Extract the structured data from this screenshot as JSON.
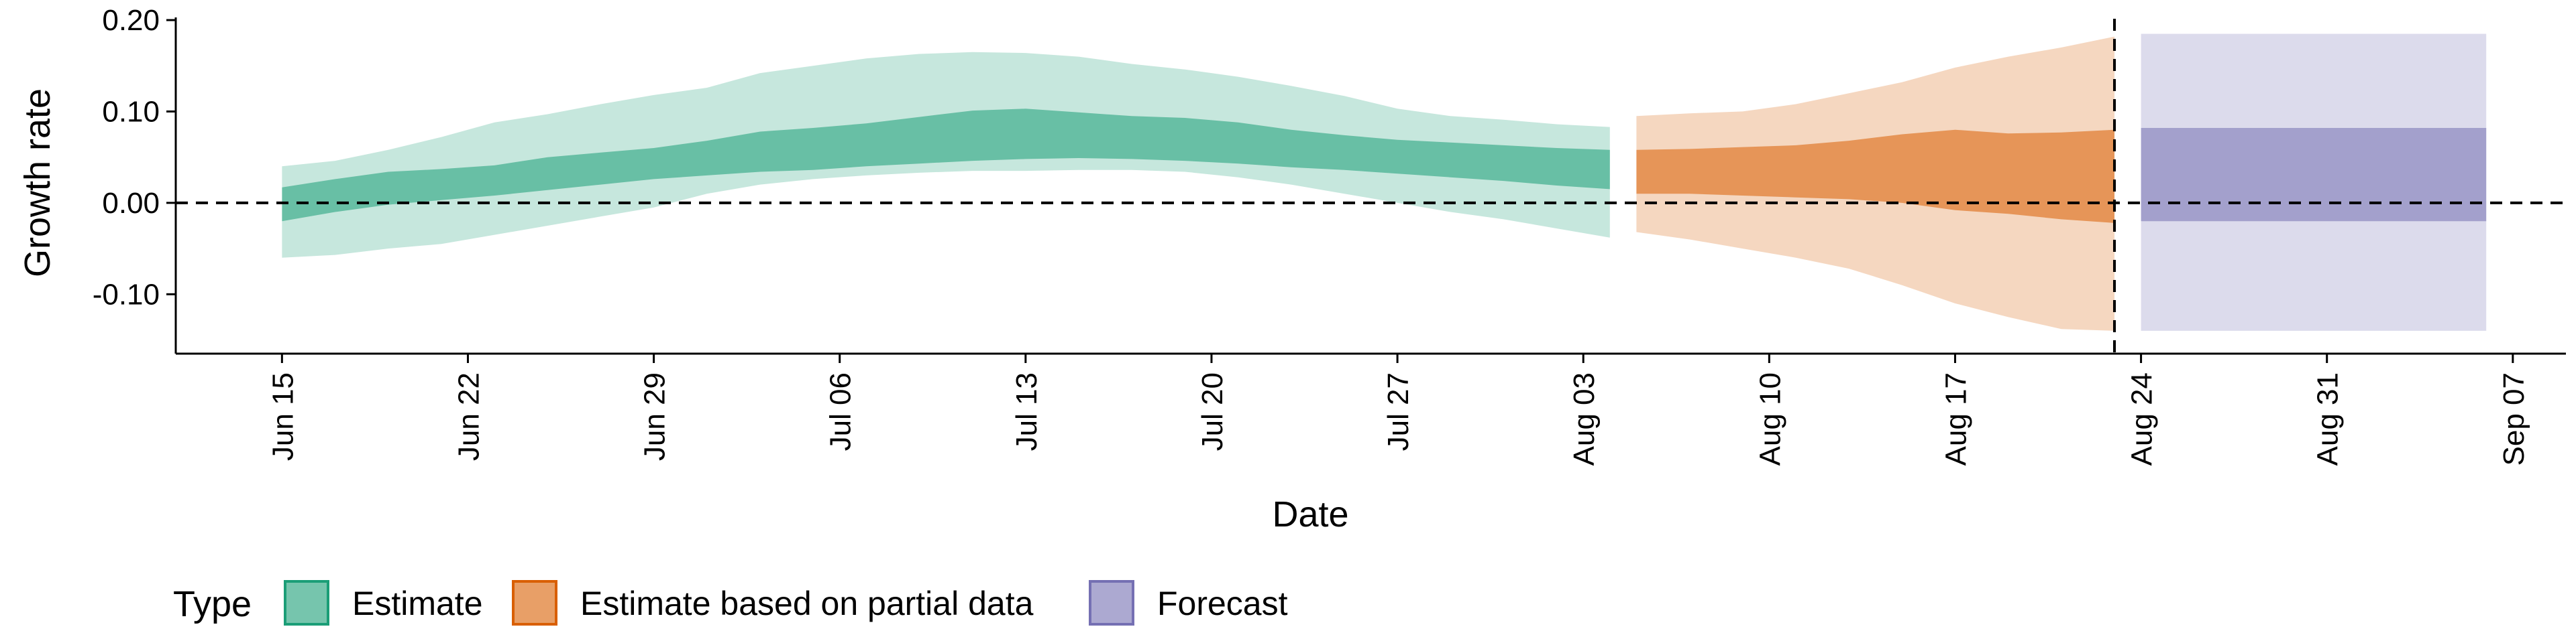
{
  "chart_data": {
    "type": "area",
    "xlabel": "Date",
    "ylabel": "Growth rate",
    "ylim": [
      -0.165,
      0.2
    ],
    "xlim": [
      "2020-06-11",
      "2020-09-09"
    ],
    "yticks": [
      {
        "value": -0.1,
        "label": "-0.10"
      },
      {
        "value": 0.0,
        "label": "0.00"
      },
      {
        "value": 0.1,
        "label": "0.10"
      },
      {
        "value": 0.2,
        "label": "0.20"
      }
    ],
    "xticks": [
      {
        "date": "2020-06-15",
        "label": "Jun 15"
      },
      {
        "date": "2020-06-22",
        "label": "Jun 22"
      },
      {
        "date": "2020-06-29",
        "label": "Jun 29"
      },
      {
        "date": "2020-07-06",
        "label": "Jul 06"
      },
      {
        "date": "2020-07-13",
        "label": "Jul 13"
      },
      {
        "date": "2020-07-20",
        "label": "Jul 20"
      },
      {
        "date": "2020-07-27",
        "label": "Jul 27"
      },
      {
        "date": "2020-08-03",
        "label": "Aug 03"
      },
      {
        "date": "2020-08-10",
        "label": "Aug 10"
      },
      {
        "date": "2020-08-17",
        "label": "Aug 17"
      },
      {
        "date": "2020-08-24",
        "label": "Aug 24"
      },
      {
        "date": "2020-08-31",
        "label": "Aug 31"
      },
      {
        "date": "2020-09-07",
        "label": "Sep 07"
      }
    ],
    "reference_lines": [
      {
        "axis": "y",
        "value": 0.0,
        "style": "dashed"
      },
      {
        "axis": "x",
        "value": "2020-08-23",
        "style": "dashed"
      }
    ],
    "grid": false,
    "legend": {
      "title": "Type",
      "position": "bottom-left"
    },
    "series": [
      {
        "name": "Estimate",
        "color": "#1b9e77",
        "x": [
          "2020-06-15",
          "2020-06-17",
          "2020-06-19",
          "2020-06-21",
          "2020-06-23",
          "2020-06-25",
          "2020-06-27",
          "2020-06-29",
          "2020-07-01",
          "2020-07-03",
          "2020-07-05",
          "2020-07-07",
          "2020-07-09",
          "2020-07-11",
          "2020-07-13",
          "2020-07-15",
          "2020-07-17",
          "2020-07-19",
          "2020-07-21",
          "2020-07-23",
          "2020-07-25",
          "2020-07-27",
          "2020-07-29",
          "2020-07-31",
          "2020-08-02",
          "2020-08-04"
        ],
        "upper90": [
          0.04,
          0.046,
          0.058,
          0.072,
          0.088,
          0.097,
          0.108,
          0.118,
          0.126,
          0.142,
          0.15,
          0.158,
          0.163,
          0.165,
          0.164,
          0.16,
          0.152,
          0.146,
          0.138,
          0.128,
          0.117,
          0.103,
          0.095,
          0.091,
          0.086,
          0.083
        ],
        "upper50": [
          0.017,
          0.026,
          0.034,
          0.037,
          0.041,
          0.05,
          0.055,
          0.06,
          0.068,
          0.078,
          0.082,
          0.087,
          0.094,
          0.101,
          0.103,
          0.099,
          0.095,
          0.093,
          0.088,
          0.08,
          0.074,
          0.069,
          0.066,
          0.063,
          0.06,
          0.058
        ],
        "lower50": [
          -0.02,
          -0.01,
          -0.002,
          0.003,
          0.008,
          0.014,
          0.02,
          0.026,
          0.03,
          0.034,
          0.036,
          0.04,
          0.043,
          0.046,
          0.048,
          0.049,
          0.048,
          0.046,
          0.043,
          0.039,
          0.036,
          0.032,
          0.028,
          0.024,
          0.019,
          0.015
        ],
        "lower90": [
          -0.06,
          -0.057,
          -0.05,
          -0.045,
          -0.035,
          -0.025,
          -0.015,
          -0.005,
          0.01,
          0.02,
          0.026,
          0.03,
          0.033,
          0.035,
          0.035,
          0.036,
          0.036,
          0.034,
          0.028,
          0.02,
          0.01,
          0.0,
          -0.01,
          -0.018,
          -0.028,
          -0.038
        ]
      },
      {
        "name": "Estimate based on partial data",
        "color": "#d95f02",
        "x": [
          "2020-08-05",
          "2020-08-07",
          "2020-08-09",
          "2020-08-11",
          "2020-08-13",
          "2020-08-15",
          "2020-08-17",
          "2020-08-19",
          "2020-08-21",
          "2020-08-23"
        ],
        "upper90": [
          0.095,
          0.098,
          0.1,
          0.108,
          0.12,
          0.132,
          0.148,
          0.16,
          0.17,
          0.182
        ],
        "upper50": [
          0.058,
          0.059,
          0.061,
          0.063,
          0.068,
          0.075,
          0.08,
          0.076,
          0.077,
          0.08
        ],
        "lower50": [
          0.01,
          0.01,
          0.008,
          0.006,
          0.004,
          0.0,
          -0.008,
          -0.012,
          -0.018,
          -0.022
        ],
        "lower90": [
          -0.032,
          -0.04,
          -0.05,
          -0.06,
          -0.072,
          -0.09,
          -0.11,
          -0.125,
          -0.138,
          -0.14
        ]
      },
      {
        "name": "Forecast",
        "color": "#7570b3",
        "x": [
          "2020-08-24",
          "2020-09-06"
        ],
        "upper90": [
          0.185,
          0.185
        ],
        "upper50": [
          0.082,
          0.082
        ],
        "lower50": [
          -0.02,
          -0.02
        ],
        "lower90": [
          -0.14,
          -0.14
        ]
      }
    ]
  }
}
